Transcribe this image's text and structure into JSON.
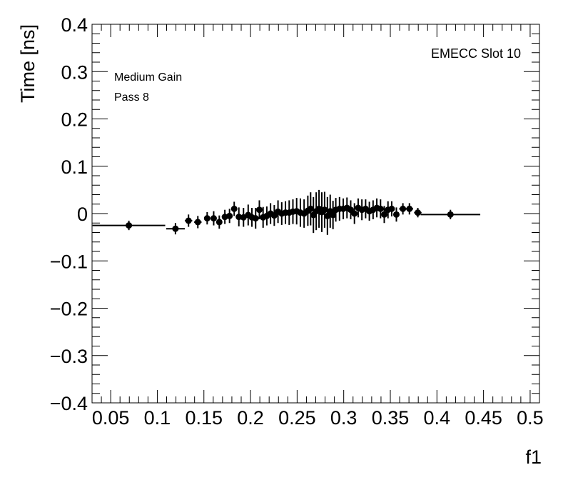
{
  "chart_data": {
    "type": "scatter",
    "title": "",
    "xlabel": "f1",
    "ylabel": "Time [ns]",
    "xlim": [
      0.03,
      0.51
    ],
    "ylim": [
      -0.4,
      0.4
    ],
    "x_ticks": [
      0.05,
      0.1,
      0.15,
      0.2,
      0.25,
      0.3,
      0.35,
      0.4,
      0.45,
      0.5
    ],
    "x_tick_labels": [
      "0.05",
      "0.1",
      "0.15",
      "0.2",
      "0.25",
      "0.3",
      "0.35",
      "0.4",
      "0.45",
      "0.5"
    ],
    "y_ticks": [
      -0.4,
      -0.3,
      -0.2,
      -0.1,
      0,
      0.1,
      0.2,
      0.3,
      0.4
    ],
    "y_tick_labels": [
      "−0.4",
      "−0.3",
      "−0.2",
      "−0.1",
      "0",
      "0.1",
      "0.2",
      "0.3",
      "0.4"
    ],
    "grid": false,
    "annotations": {
      "slot": "EMECC Slot 10",
      "gain": "Medium Gain",
      "pass": "Pass 8"
    },
    "points": [
      {
        "x": 0.0695,
        "y": -0.025,
        "yerr": 0.01,
        "xerr": 0.039
      },
      {
        "x": 0.1195,
        "y": -0.032,
        "yerr": 0.012,
        "xerr": 0.01
      },
      {
        "x": 0.1335,
        "y": -0.015,
        "yerr": 0.013,
        "xerr": 0.004
      },
      {
        "x": 0.1435,
        "y": -0.018,
        "yerr": 0.013,
        "xerr": 0.004
      },
      {
        "x": 0.1535,
        "y": -0.01,
        "yerr": 0.013,
        "xerr": 0.003
      },
      {
        "x": 0.1605,
        "y": -0.01,
        "yerr": 0.015,
        "xerr": 0.003
      },
      {
        "x": 0.1665,
        "y": -0.018,
        "yerr": 0.014,
        "xerr": 0.002
      },
      {
        "x": 0.1725,
        "y": -0.007,
        "yerr": 0.015,
        "xerr": 0.002
      },
      {
        "x": 0.1775,
        "y": -0.005,
        "yerr": 0.015,
        "xerr": 0.002
      },
      {
        "x": 0.1825,
        "y": 0.01,
        "yerr": 0.015,
        "xerr": 0.002
      },
      {
        "x": 0.1875,
        "y": -0.007,
        "yerr": 0.02,
        "xerr": 0.002
      },
      {
        "x": 0.1925,
        "y": -0.008,
        "yerr": 0.02,
        "xerr": 0.002
      },
      {
        "x": 0.1975,
        "y": -0.003,
        "yerr": 0.022,
        "xerr": 0.002
      },
      {
        "x": 0.2015,
        "y": -0.008,
        "yerr": 0.02,
        "xerr": 0.002
      },
      {
        "x": 0.2055,
        "y": -0.01,
        "yerr": 0.022,
        "xerr": 0.002
      },
      {
        "x": 0.2095,
        "y": 0.008,
        "yerr": 0.02,
        "xerr": 0.002
      },
      {
        "x": 0.2135,
        "y": -0.008,
        "yerr": 0.022,
        "xerr": 0.002
      },
      {
        "x": 0.2175,
        "y": -0.005,
        "yerr": 0.02,
        "xerr": 0.002
      },
      {
        "x": 0.2215,
        "y": 0.0,
        "yerr": 0.022,
        "xerr": 0.002
      },
      {
        "x": 0.2255,
        "y": -0.004,
        "yerr": 0.022,
        "xerr": 0.002
      },
      {
        "x": 0.2295,
        "y": 0.004,
        "yerr": 0.024,
        "xerr": 0.002
      },
      {
        "x": 0.2335,
        "y": 0.0,
        "yerr": 0.024,
        "xerr": 0.002
      },
      {
        "x": 0.2375,
        "y": 0.002,
        "yerr": 0.024,
        "xerr": 0.002
      },
      {
        "x": 0.2415,
        "y": 0.002,
        "yerr": 0.026,
        "xerr": 0.002
      },
      {
        "x": 0.2455,
        "y": 0.004,
        "yerr": 0.026,
        "xerr": 0.002
      },
      {
        "x": 0.2495,
        "y": 0.005,
        "yerr": 0.028,
        "xerr": 0.002
      },
      {
        "x": 0.2535,
        "y": 0.002,
        "yerr": 0.03,
        "xerr": 0.002
      },
      {
        "x": 0.2575,
        "y": 0.0,
        "yerr": 0.03,
        "xerr": 0.002
      },
      {
        "x": 0.2615,
        "y": 0.006,
        "yerr": 0.032,
        "xerr": 0.002
      },
      {
        "x": 0.2645,
        "y": 0.01,
        "yerr": 0.035,
        "xerr": 0.002
      },
      {
        "x": 0.2675,
        "y": -0.003,
        "yerr": 0.038,
        "xerr": 0.002
      },
      {
        "x": 0.2705,
        "y": 0.005,
        "yerr": 0.04,
        "xerr": 0.002
      },
      {
        "x": 0.2735,
        "y": 0.01,
        "yerr": 0.04,
        "xerr": 0.002
      },
      {
        "x": 0.2765,
        "y": 0.003,
        "yerr": 0.042,
        "xerr": 0.002
      },
      {
        "x": 0.2795,
        "y": 0.008,
        "yerr": 0.038,
        "xerr": 0.002
      },
      {
        "x": 0.2825,
        "y": -0.005,
        "yerr": 0.04,
        "xerr": 0.002
      },
      {
        "x": 0.2855,
        "y": 0.005,
        "yerr": 0.035,
        "xerr": 0.002
      },
      {
        "x": 0.2885,
        "y": -0.003,
        "yerr": 0.03,
        "xerr": 0.002
      },
      {
        "x": 0.2915,
        "y": 0.008,
        "yerr": 0.025,
        "xerr": 0.002
      },
      {
        "x": 0.2955,
        "y": 0.01,
        "yerr": 0.025,
        "xerr": 0.002
      },
      {
        "x": 0.2995,
        "y": 0.01,
        "yerr": 0.022,
        "xerr": 0.002
      },
      {
        "x": 0.3035,
        "y": 0.012,
        "yerr": 0.022,
        "xerr": 0.002
      },
      {
        "x": 0.3075,
        "y": 0.008,
        "yerr": 0.02,
        "xerr": 0.002
      },
      {
        "x": 0.3115,
        "y": 0.0,
        "yerr": 0.022,
        "xerr": 0.002
      },
      {
        "x": 0.3155,
        "y": 0.012,
        "yerr": 0.02,
        "xerr": 0.002
      },
      {
        "x": 0.3195,
        "y": 0.008,
        "yerr": 0.022,
        "xerr": 0.002
      },
      {
        "x": 0.3235,
        "y": 0.01,
        "yerr": 0.02,
        "xerr": 0.002
      },
      {
        "x": 0.3275,
        "y": 0.005,
        "yerr": 0.02,
        "xerr": 0.002
      },
      {
        "x": 0.3315,
        "y": 0.008,
        "yerr": 0.02,
        "xerr": 0.002
      },
      {
        "x": 0.3355,
        "y": 0.012,
        "yerr": 0.02,
        "xerr": 0.002
      },
      {
        "x": 0.3395,
        "y": 0.01,
        "yerr": 0.02,
        "xerr": 0.002
      },
      {
        "x": 0.3435,
        "y": -0.002,
        "yerr": 0.018,
        "xerr": 0.002
      },
      {
        "x": 0.3475,
        "y": 0.008,
        "yerr": 0.018,
        "xerr": 0.002
      },
      {
        "x": 0.3515,
        "y": 0.01,
        "yerr": 0.016,
        "xerr": 0.002
      },
      {
        "x": 0.3565,
        "y": -0.002,
        "yerr": 0.015,
        "xerr": 0.003
      },
      {
        "x": 0.3635,
        "y": 0.01,
        "yerr": 0.012,
        "xerr": 0.004
      },
      {
        "x": 0.3705,
        "y": 0.01,
        "yerr": 0.012,
        "xerr": 0.004
      },
      {
        "x": 0.3795,
        "y": 0.002,
        "yerr": 0.01,
        "xerr": 0.004
      },
      {
        "x": 0.4145,
        "y": -0.002,
        "yerr": 0.01,
        "xerr": 0.032
      }
    ]
  }
}
